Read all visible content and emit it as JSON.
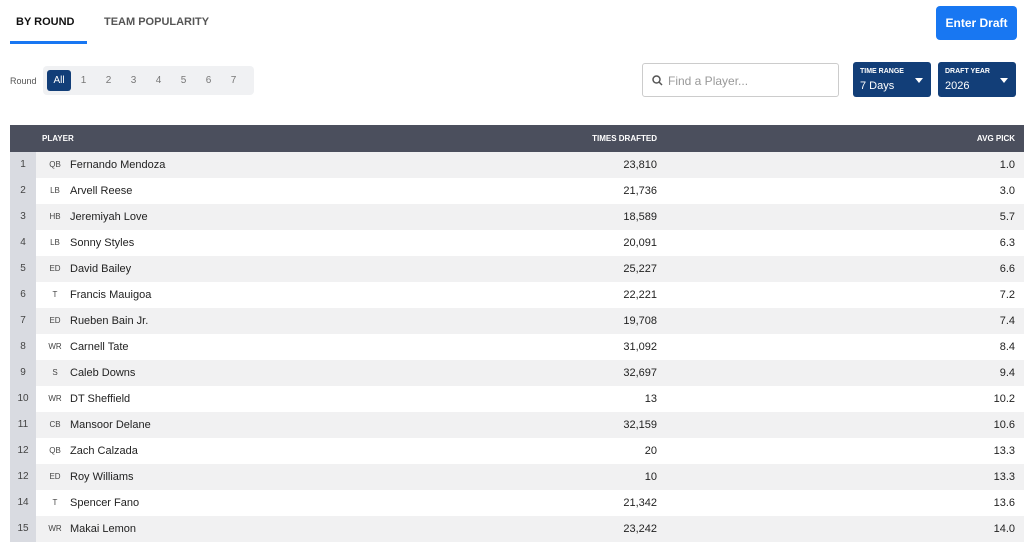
{
  "tabs": [
    "BY ROUND",
    "TEAM POPULARITY"
  ],
  "enter_draft": "Enter Draft",
  "round_filter": {
    "label": "Round",
    "options": [
      "All",
      "1",
      "2",
      "3",
      "4",
      "5",
      "6",
      "7"
    ]
  },
  "search": {
    "placeholder": "Find a Player..."
  },
  "dropdowns": [
    {
      "label": "TIME RANGE",
      "value": "7 Days"
    },
    {
      "label": "DRAFT YEAR",
      "value": "2026"
    }
  ],
  "table": {
    "columns": [
      "PLAYER",
      "TIMES DRAFTED",
      "AVG PICK"
    ],
    "rows": [
      [
        "1",
        "QB",
        "Fernando Mendoza",
        "23,810",
        "1.0"
      ],
      [
        "2",
        "LB",
        "Arvell Reese",
        "21,736",
        "3.0"
      ],
      [
        "3",
        "HB",
        "Jeremiyah Love",
        "18,589",
        "5.7"
      ],
      [
        "4",
        "LB",
        "Sonny Styles",
        "20,091",
        "6.3"
      ],
      [
        "5",
        "ED",
        "David Bailey",
        "25,227",
        "6.6"
      ],
      [
        "6",
        "T",
        "Francis Mauigoa",
        "22,221",
        "7.2"
      ],
      [
        "7",
        "ED",
        "Rueben Bain Jr.",
        "19,708",
        "7.4"
      ],
      [
        "8",
        "WR",
        "Carnell Tate",
        "31,092",
        "8.4"
      ],
      [
        "9",
        "S",
        "Caleb Downs",
        "32,697",
        "9.4"
      ],
      [
        "10",
        "WR",
        "DT Sheffield",
        "13",
        "10.2"
      ],
      [
        "11",
        "CB",
        "Mansoor Delane",
        "32,159",
        "10.6"
      ],
      [
        "12",
        "QB",
        "Zach Calzada",
        "20",
        "13.3"
      ],
      [
        "12",
        "ED",
        "Roy Williams",
        "10",
        "13.3"
      ],
      [
        "14",
        "T",
        "Spencer Fano",
        "21,342",
        "13.6"
      ],
      [
        "15",
        "WR",
        "Makai Lemon",
        "23,242",
        "14.0"
      ]
    ]
  }
}
